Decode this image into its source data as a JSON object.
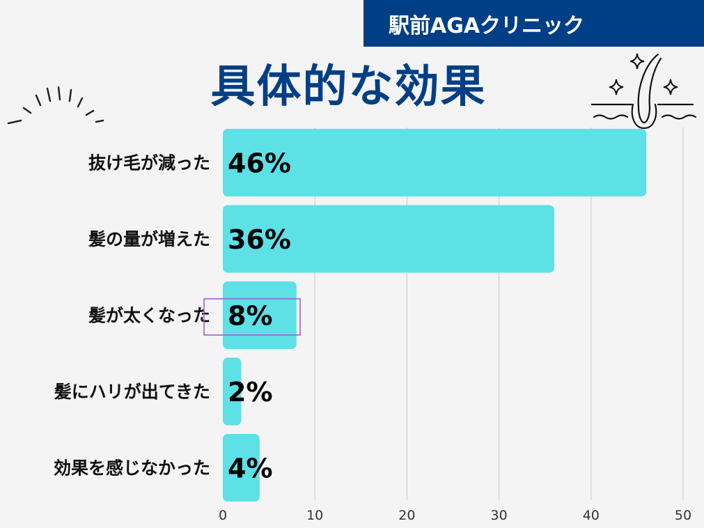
{
  "brand": "駅前AGAクリニック",
  "colors": {
    "brand_blue": "#003f86",
    "bar": "#5de0e6",
    "grid": "#cfcfcf",
    "highlight_box": "#a05ce0"
  },
  "icons": [
    "hair-follicle-icon",
    "sparkle-icon",
    "burst-lines-icon"
  ],
  "chart_data": {
    "type": "bar",
    "orientation": "horizontal",
    "title": "具体的な効果",
    "categories": [
      "抜け毛が減った",
      "髪の量が増えた",
      "髪が太くなった",
      "髪にハリが出てきた",
      "効果を感じなかった"
    ],
    "values": [
      46,
      36,
      8,
      2,
      4
    ],
    "value_labels": [
      "46%",
      "36%",
      "8%",
      "2%",
      "4%"
    ],
    "xlim": [
      0,
      50
    ],
    "x_ticks": [
      0,
      10,
      20,
      30,
      40,
      50
    ],
    "grid": true,
    "highlighted_category": "髪が太くなった"
  }
}
